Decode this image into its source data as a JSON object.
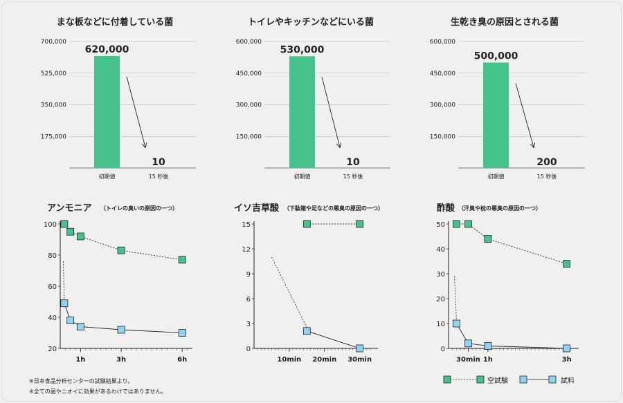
{
  "colors": {
    "bar": "#46c28c",
    "blank_marker": "#46c28c",
    "sample_marker": "#92d3f2",
    "grid": "#b4b4b4",
    "text": "#222222"
  },
  "chart_data": [
    {
      "type": "bar",
      "title": "まな板などに付着している菌",
      "categories": [
        "初期値",
        "15 秒後"
      ],
      "values": [
        620000,
        10
      ],
      "value_labels": [
        "620,000",
        "10"
      ],
      "yticks": [
        175000,
        350000,
        525000,
        700000
      ],
      "ytick_labels": [
        "175,000",
        "350,000",
        "525,000",
        "700,000"
      ],
      "ylim": [
        0,
        700000
      ]
    },
    {
      "type": "bar",
      "title": "トイレやキッチンなどにいる菌",
      "categories": [
        "初期値",
        "15 秒後"
      ],
      "values": [
        530000,
        10
      ],
      "value_labels": [
        "530,000",
        "10"
      ],
      "yticks": [
        150000,
        300000,
        450000,
        600000
      ],
      "ytick_labels": [
        "150,000",
        "300,000",
        "450,000",
        "600,000"
      ],
      "ylim": [
        0,
        600000
      ]
    },
    {
      "type": "bar",
      "title": "生乾き臭の原因とされる菌",
      "categories": [
        "初期値",
        "15 秒後"
      ],
      "values": [
        500000,
        200
      ],
      "value_labels": [
        "500,000",
        "200"
      ],
      "yticks": [
        150000,
        300000,
        450000,
        600000
      ],
      "ytick_labels": [
        "150,000",
        "300,000",
        "450,000",
        "600,000"
      ],
      "ylim": [
        0,
        600000
      ]
    },
    {
      "type": "line",
      "title": "アンモニア",
      "subtitle": "（トイレの臭いの原因の一つ）",
      "xlim": [
        0,
        6.3
      ],
      "xticks": [
        1,
        3,
        6
      ],
      "xtick_labels": [
        "1h",
        "3h",
        "6h"
      ],
      "ylim": [
        20,
        100
      ],
      "yticks": [
        20,
        40,
        60,
        80,
        100
      ],
      "ytick_labels": [
        "20",
        "40",
        "60",
        "80",
        "100"
      ],
      "series": [
        {
          "name": "空試験",
          "x": [
            0.2,
            0.5,
            1,
            3,
            6
          ],
          "y": [
            100,
            95,
            92,
            83,
            77
          ]
        },
        {
          "name": "試料",
          "x": [
            0.2,
            0.5,
            1,
            3,
            6
          ],
          "y": [
            49,
            38,
            34,
            32,
            30
          ]
        }
      ]
    },
    {
      "type": "line",
      "title": "イソ吉草酸",
      "subtitle": "（下駄箱や足などの悪臭の原因の一つ）",
      "xlim": [
        0,
        34
      ],
      "xticks": [
        10,
        20,
        30
      ],
      "xtick_labels": [
        "10min",
        "20min",
        "30min"
      ],
      "ylim": [
        0,
        15
      ],
      "yticks": [
        0,
        3,
        6,
        9,
        12,
        15
      ],
      "ytick_labels": [
        "0",
        "3",
        "6",
        "9",
        "12",
        "15"
      ],
      "series": [
        {
          "name": "空試験",
          "x": [
            15,
            30
          ],
          "y": [
            15,
            15
          ]
        },
        {
          "name": "試料",
          "x": [
            15,
            30
          ],
          "y": [
            2.1,
            0
          ]
        }
      ]
    },
    {
      "type": "line",
      "title": "酢酸",
      "subtitle": "（汗臭や枕の悪臭の原因の一つ）",
      "xlim": [
        0,
        3.2
      ],
      "xticks": [
        0.5,
        1,
        3
      ],
      "xtick_labels": [
        "30min",
        "1h",
        "3h"
      ],
      "ylim": [
        0,
        50
      ],
      "yticks": [
        0,
        10,
        20,
        30,
        40,
        50
      ],
      "ytick_labels": [
        "0",
        "10",
        "20",
        "30",
        "40",
        "50"
      ],
      "series": [
        {
          "name": "空試験",
          "x": [
            0.2,
            0.5,
            1,
            3
          ],
          "y": [
            50,
            50,
            44,
            34
          ]
        },
        {
          "name": "試料",
          "x": [
            0.2,
            0.5,
            1,
            3
          ],
          "y": [
            10,
            2,
            1,
            0
          ]
        }
      ]
    }
  ],
  "legend": {
    "blank": "空試験",
    "sample": "試料"
  },
  "footnotes": [
    "※日本食品分析センターの試験結果より。",
    "※全ての菌やニオイに効果があるわけではありません。"
  ]
}
